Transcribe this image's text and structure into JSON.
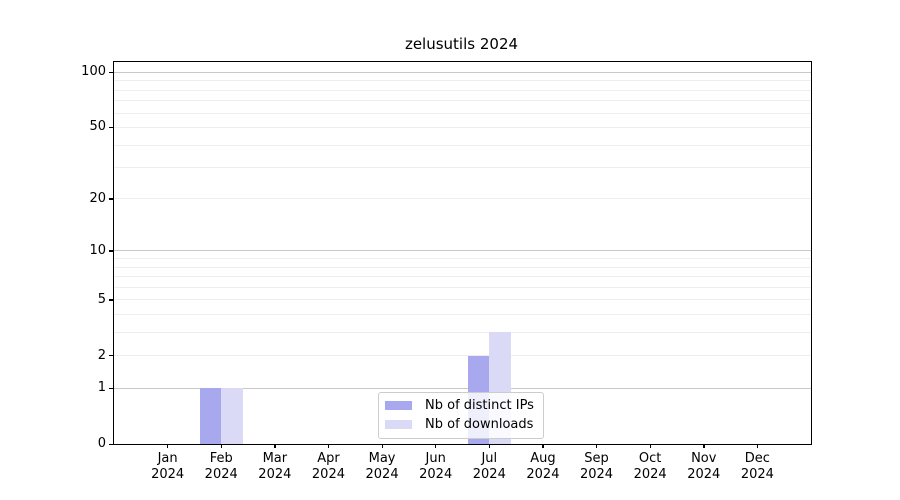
{
  "title": "zelusutils 2024",
  "chart_data": {
    "type": "bar",
    "title": "zelusutils 2024",
    "categories": [
      "Jan 2024",
      "Feb 2024",
      "Mar 2024",
      "Apr 2024",
      "May 2024",
      "Jun 2024",
      "Jul 2024",
      "Aug 2024",
      "Sep 2024",
      "Oct 2024",
      "Nov 2024",
      "Dec 2024"
    ],
    "series": [
      {
        "name": "Nb of distinct IPs",
        "color": "#a8a8ee",
        "values": [
          0,
          1,
          0,
          0,
          0,
          0,
          2,
          0,
          0,
          0,
          0,
          0
        ]
      },
      {
        "name": "Nb of downloads",
        "color": "#dadaf6",
        "values": [
          0,
          1,
          0,
          0,
          0,
          0,
          3,
          0,
          0,
          0,
          0,
          0
        ]
      }
    ],
    "xlabel": "",
    "ylabel": "",
    "yscale": "log1p",
    "ylim": [
      0,
      114
    ],
    "ytick_labels": [
      0,
      1,
      2,
      5,
      10,
      20,
      50,
      100
    ],
    "major_gridlines": [
      1,
      10,
      100
    ],
    "minor_gridlines": [
      2,
      3,
      4,
      5,
      6,
      7,
      8,
      9,
      20,
      30,
      40,
      50,
      60,
      70,
      80,
      90
    ],
    "bar_width_fraction": 0.4,
    "grid": true,
    "legend_position": "lower center",
    "legend_entries": [
      "Nb of distinct IPs",
      "Nb of downloads"
    ]
  }
}
